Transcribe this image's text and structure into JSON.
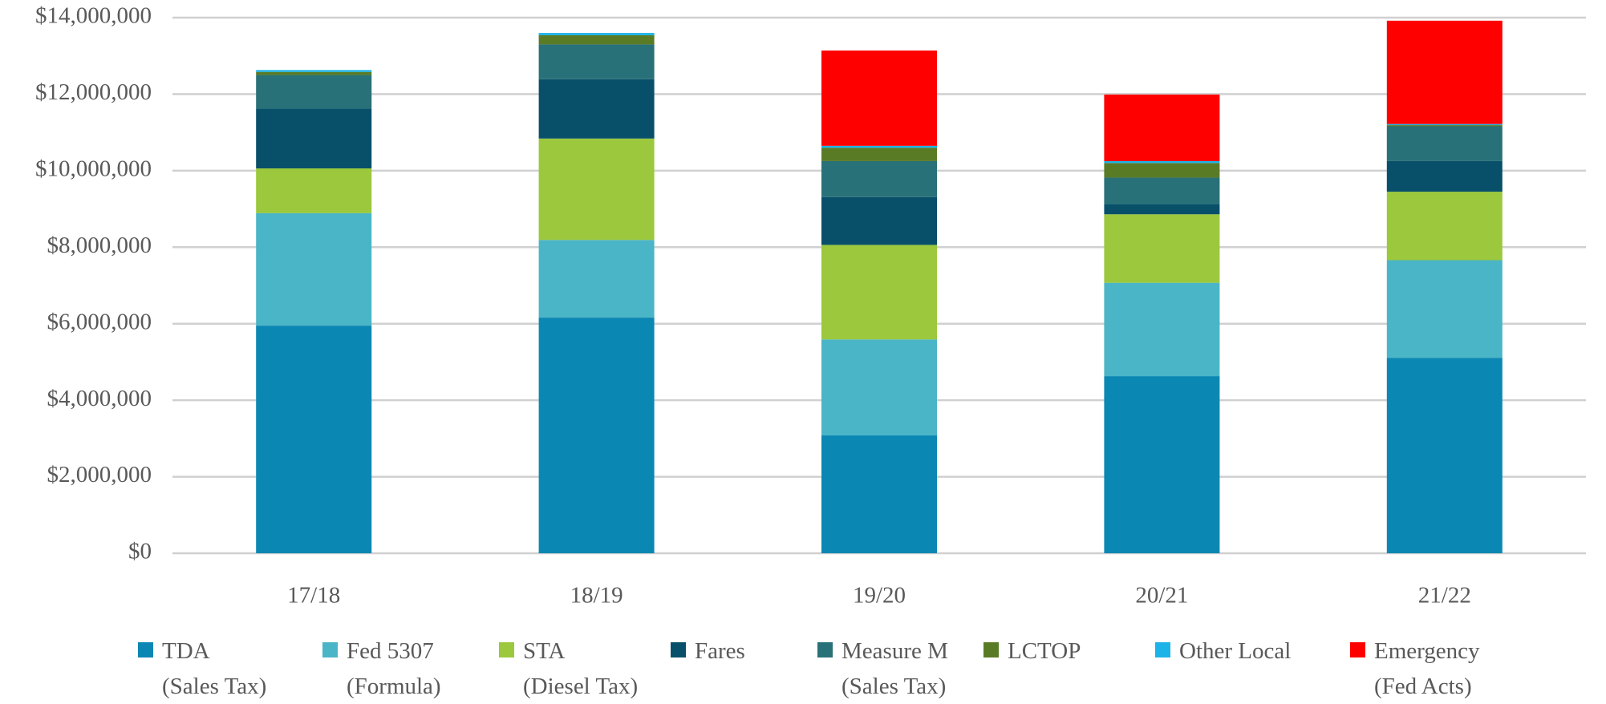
{
  "chart_data": {
    "type": "stacked-bar",
    "categories": [
      "17/18",
      "18/19",
      "19/20",
      "20/21",
      "21/22"
    ],
    "series": [
      {
        "name": "TDA\n(Sales Tax)",
        "color": "#0b87b3",
        "values": [
          5950000,
          6160000,
          3080000,
          4630000,
          5110000
        ]
      },
      {
        "name": "Fed 5307\n(Formula)",
        "color": "#4ab5c6",
        "values": [
          2940000,
          2030000,
          2510000,
          2440000,
          2550000
        ]
      },
      {
        "name": "STA\n(Diesel Tax)",
        "color": "#9bc83c",
        "values": [
          1170000,
          2650000,
          2470000,
          1790000,
          1790000
        ]
      },
      {
        "name": "Fares",
        "color": "#08506a",
        "values": [
          1560000,
          1550000,
          1250000,
          270000,
          800000
        ]
      },
      {
        "name": "Measure M\n(Sales Tax)",
        "color": "#287178",
        "values": [
          880000,
          910000,
          940000,
          690000,
          910000
        ]
      },
      {
        "name": "LCTOP",
        "color": "#5a7b26",
        "values": [
          80000,
          240000,
          350000,
          380000,
          30000
        ]
      },
      {
        "name": "Other Local",
        "color": "#1cb4e8",
        "values": [
          50000,
          60000,
          50000,
          50000,
          30000
        ]
      },
      {
        "name": "Emergency\n(Fed Acts)",
        "color": "#fe0000",
        "values": [
          0,
          0,
          2490000,
          1740000,
          2700000
        ]
      }
    ],
    "ylim": [
      0,
      14000000
    ],
    "yticks": [
      {
        "value": 0,
        "label": "$0"
      },
      {
        "value": 2000000,
        "label": "$2,000,000"
      },
      {
        "value": 4000000,
        "label": "$4,000,000"
      },
      {
        "value": 6000000,
        "label": "$6,000,000"
      },
      {
        "value": 8000000,
        "label": "$8,000,000"
      },
      {
        "value": 10000000,
        "label": "$10,000,000"
      },
      {
        "value": 12000000,
        "label": "$12,000,000"
      },
      {
        "value": 14000000,
        "label": "$14,000,000"
      }
    ],
    "grid": true
  }
}
